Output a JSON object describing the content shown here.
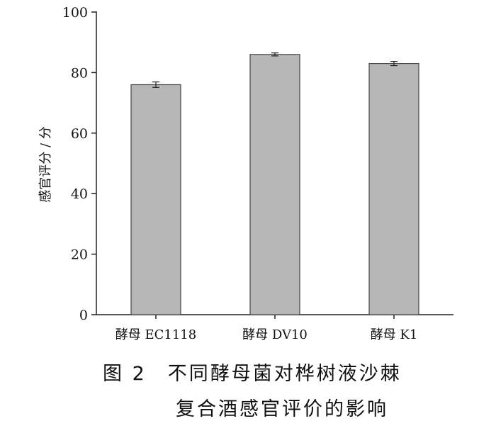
{
  "chart_data": {
    "type": "bar",
    "categories": [
      "酵母 EC1118",
      "酵母 DV10",
      "酵母 K1"
    ],
    "values": [
      76,
      86,
      83
    ],
    "errors": [
      0.9,
      0.5,
      0.7
    ],
    "ylabel": "感官评分 / 分",
    "xlabel": "",
    "ylim": [
      0,
      100
    ],
    "yticks": [
      0,
      20,
      40,
      60,
      80,
      100
    ],
    "grid": false,
    "colors": {
      "bar_fill": "#b7b7b7",
      "bar_stroke": "#444444",
      "axis": "#222222"
    }
  },
  "caption": {
    "line1": "图 2　不同酵母菌对桦树液沙棘",
    "line2": "复合酒感官评价的影响"
  }
}
